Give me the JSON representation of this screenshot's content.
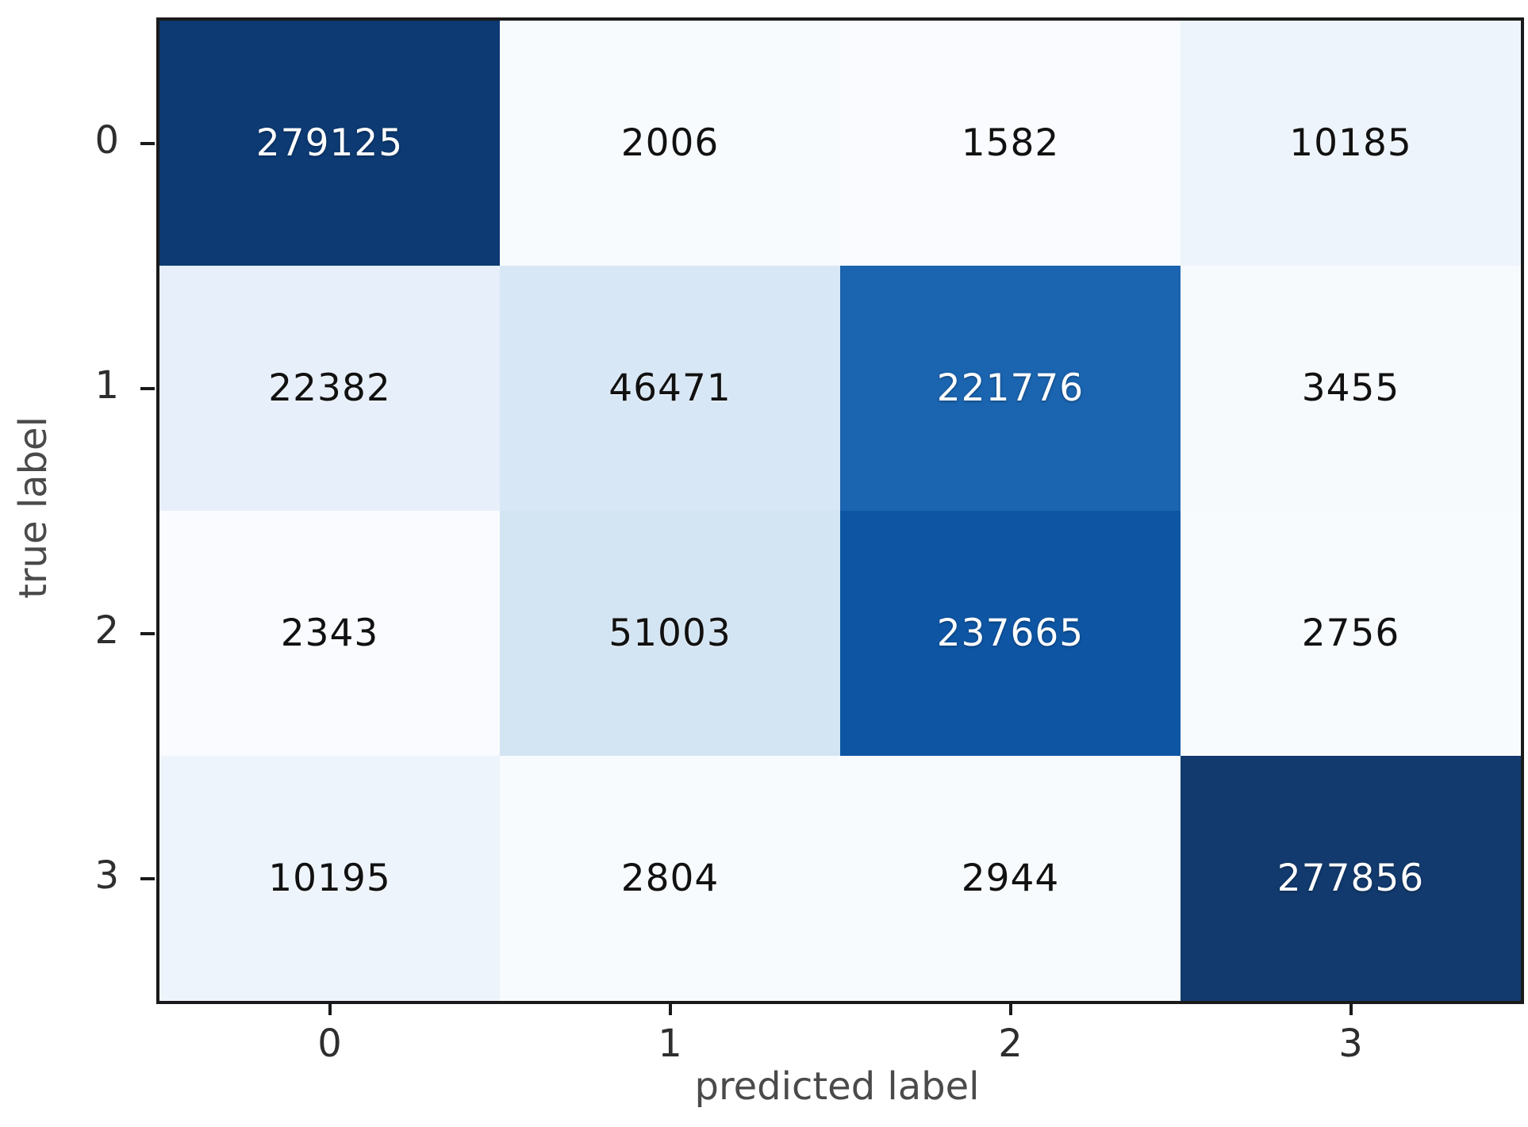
{
  "figure": {
    "kind": "confusion-matrix-heatmap",
    "background": "#ffffff",
    "spine_color": "#1a1a1a",
    "tick_color": "#1a1a1a",
    "tick_label_color": "#2e2e2e",
    "axis_label_color": "#4a4a4a",
    "dark_cell_text_color": "#ffffff",
    "light_cell_text_color": "#111111"
  },
  "chart_data": {
    "type": "heatmap",
    "title": "",
    "xlabel": "predicted label",
    "ylabel": "true label",
    "x_ticks": [
      "0",
      "1",
      "2",
      "3"
    ],
    "y_ticks": [
      "0",
      "1",
      "2",
      "3"
    ],
    "colormap": "Blues",
    "value_range": [
      0,
      279125
    ],
    "grid": false,
    "legend": "none",
    "matrix": [
      [
        279125,
        2006,
        1582,
        10185
      ],
      [
        22382,
        46471,
        221776,
        3455
      ],
      [
        2343,
        51003,
        237665,
        2756
      ],
      [
        10195,
        2804,
        2944,
        277856
      ]
    ],
    "cell_colors": [
      [
        "#0d3a73",
        "#f8fbfe",
        "#f9fbfe",
        "#edf4fb"
      ],
      [
        "#e7effa",
        "#d8e7f5",
        "#1b64af",
        "#f7fafd"
      ],
      [
        "#f9fbfe",
        "#d3e4f3",
        "#0e56a4",
        "#f8fbfe"
      ],
      [
        "#eef4fb",
        "#f8fbfe",
        "#f8fbfe",
        "#123a6e"
      ]
    ]
  }
}
